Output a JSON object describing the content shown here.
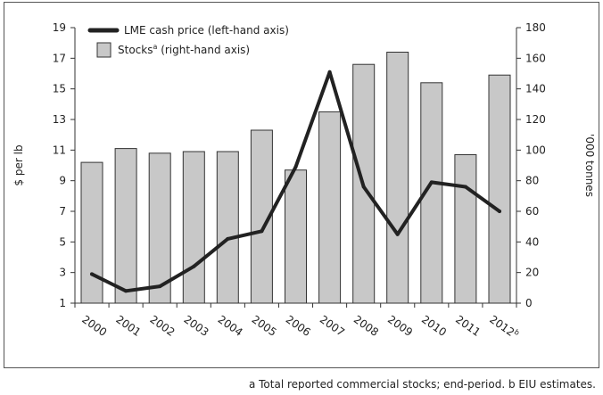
{
  "chart_data": {
    "type": "bar+line",
    "categories": [
      "2000",
      "2001",
      "2002",
      "2003",
      "2004",
      "2005",
      "2006",
      "2007",
      "2008",
      "2009",
      "2010",
      "2011",
      "2012"
    ],
    "category_labels": [
      "2000",
      "2001",
      "2002",
      "2003",
      "2004",
      "2005",
      "2006",
      "2007",
      "2008",
      "2009",
      "2010",
      "2011",
      "2012b"
    ],
    "series": [
      {
        "name": "Stocks",
        "name_superscript": "a",
        "name_suffix": " (right-hand axis)",
        "kind": "bar",
        "axis": "right",
        "color": "#c8c8c8",
        "values": [
          92,
          101,
          98,
          99,
          99,
          113,
          87,
          125,
          156,
          164,
          144,
          97,
          149
        ]
      },
      {
        "name": "LME cash price (left-hand axis)",
        "kind": "line",
        "axis": "left",
        "color": "#222222",
        "values": [
          2.9,
          1.8,
          2.1,
          3.4,
          5.2,
          5.7,
          9.9,
          16.1,
          8.6,
          5.5,
          8.9,
          8.6,
          7.0
        ]
      }
    ],
    "left_axis": {
      "label": "$ per lb",
      "ylim": [
        1,
        19
      ],
      "ticks": [
        "1",
        "3",
        "5",
        "7",
        "9",
        "11",
        "13",
        "15",
        "17",
        "19"
      ]
    },
    "right_axis": {
      "label": "'000 tonnes",
      "ylim": [
        0,
        180
      ],
      "ticks": [
        "0",
        "20",
        "40",
        "60",
        "80",
        "100",
        "120",
        "140",
        "160",
        "180"
      ]
    },
    "legend_position": "top-left",
    "grid": false
  },
  "footnote": "a Total reported commercial stocks; end-period.  b EIU estimates."
}
